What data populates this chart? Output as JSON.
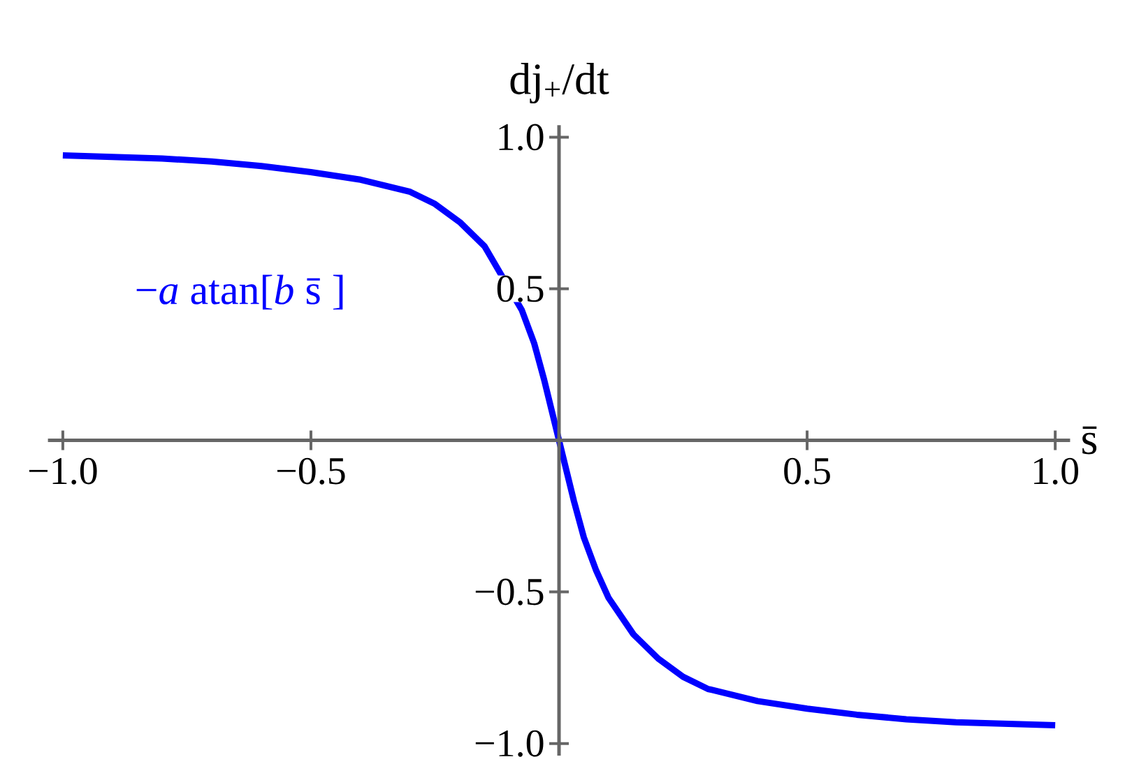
{
  "chart_data": {
    "type": "line",
    "xlabel": "s̄",
    "ylabel": "dj$_{+}$/dt",
    "annotations": [
      "−*a* atan[*b* s̄ ]"
    ],
    "x": [
      -1.0,
      -0.9,
      -0.8,
      -0.7,
      -0.6,
      -0.5,
      -0.4,
      -0.3,
      -0.25,
      -0.2,
      -0.15,
      -0.075,
      -0.05,
      -0.03,
      -0.015,
      0,
      0.015,
      0.03,
      0.05,
      0.075,
      0.1,
      0.15,
      0.2,
      0.25,
      0.3,
      0.4,
      0.5,
      0.6,
      0.7,
      0.8,
      0.9,
      1.0
    ],
    "series": [
      {
        "color": "#0000ff",
        "line_style": "solid",
        "values": [
          0.94,
          0.935,
          0.93,
          0.92,
          0.905,
          0.885,
          0.86,
          0.82,
          0.78,
          0.72,
          0.64,
          0.43,
          0.32,
          0.2,
          0.1,
          0,
          -0.1,
          -0.2,
          -0.32,
          -0.43,
          -0.52,
          -0.64,
          -0.72,
          -0.78,
          -0.82,
          -0.86,
          -0.885,
          -0.905,
          -0.92,
          -0.93,
          -0.935,
          -0.94
        ]
      }
    ],
    "xlim": [
      -1.03,
      1.03
    ],
    "ylim": [
      -1.04,
      1.04
    ],
    "xticks": [
      {
        "value": -1.0,
        "label": "−1.0"
      },
      {
        "value": -0.5,
        "label": "−0.5"
      },
      0.5,
      {
        "value": 1.0,
        "label": "1.0"
      }
    ],
    "yticks": [
      {
        "value": -1.0,
        "label": "−1.0"
      },
      {
        "value": -0.5,
        "label": "−0.5"
      },
      0.5,
      {
        "value": 1.0,
        "label": "1.0"
      }
    ]
  }
}
